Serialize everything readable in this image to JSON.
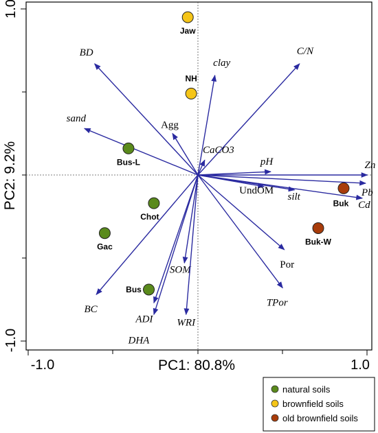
{
  "chart_data": {
    "type": "scatter",
    "title": "",
    "xlabel": "PC1: 80.8%",
    "ylabel": "PC2: 9.2%",
    "xlim": [
      -1.0,
      1.0
    ],
    "ylim": [
      -1.0,
      1.0
    ],
    "x_ticks": [
      "-1.0",
      "1.0"
    ],
    "y_ticks": [
      "1.0",
      "-1.0"
    ],
    "legend_position": "bottom-right",
    "groups": [
      {
        "name": "natural soils",
        "color": "#5a8a1c"
      },
      {
        "name": "brownfield soils",
        "color": "#f5c518"
      },
      {
        "name": "old brownfield soils",
        "color": "#a83c0a"
      }
    ],
    "sites": [
      {
        "label": "Jaw",
        "x": -0.06,
        "y": 0.95,
        "group": 1
      },
      {
        "label": "NH",
        "x": -0.04,
        "y": 0.49,
        "group": 1
      },
      {
        "label": "Bus-L",
        "x": -0.41,
        "y": 0.16,
        "group": 0
      },
      {
        "label": "Chot",
        "x": -0.26,
        "y": -0.17,
        "group": 0
      },
      {
        "label": "Gac",
        "x": -0.55,
        "y": -0.35,
        "group": 0
      },
      {
        "label": "Bus",
        "x": -0.29,
        "y": -0.69,
        "group": 0
      },
      {
        "label": "Buk",
        "x": 0.86,
        "y": -0.08,
        "group": 2
      },
      {
        "label": "Buk-W",
        "x": 0.71,
        "y": -0.32,
        "group": 2
      }
    ],
    "loadings": [
      {
        "label": "BD",
        "x": -0.61,
        "y": 0.67,
        "italic": true
      },
      {
        "label": "clay",
        "x": 0.1,
        "y": 0.6,
        "italic": true
      },
      {
        "label": "C/N",
        "x": 0.6,
        "y": 0.67,
        "italic": true
      },
      {
        "label": "sand",
        "x": -0.67,
        "y": 0.28,
        "italic": true
      },
      {
        "label": "Agg",
        "x": -0.15,
        "y": 0.25,
        "italic": false
      },
      {
        "label": "CaCO3",
        "x": 0.04,
        "y": 0.09,
        "italic": true
      },
      {
        "label": "pH",
        "x": 0.43,
        "y": 0.02,
        "italic": true
      },
      {
        "label": "Zn",
        "x": 1.0,
        "y": 0.0,
        "italic": true
      },
      {
        "label": "Pb",
        "x": 0.99,
        "y": -0.05,
        "italic": true
      },
      {
        "label": "Cd",
        "x": 0.97,
        "y": -0.14,
        "italic": true
      },
      {
        "label": "UndOM",
        "x": 0.39,
        "y": -0.07,
        "italic": false
      },
      {
        "label": "silt",
        "x": 0.57,
        "y": -0.09,
        "italic": true
      },
      {
        "label": "Por",
        "x": 0.51,
        "y": -0.45,
        "italic": false
      },
      {
        "label": "TPor",
        "x": 0.5,
        "y": -0.68,
        "italic": true
      },
      {
        "label": "SOM",
        "x": -0.08,
        "y": -0.53,
        "italic": true
      },
      {
        "label": "BC",
        "x": -0.6,
        "y": -0.72,
        "italic": true
      },
      {
        "label": "ADI",
        "x": -0.26,
        "y": -0.77,
        "italic": true
      },
      {
        "label": "DHA",
        "x": -0.26,
        "y": -0.84,
        "italic": true
      },
      {
        "label": "WRI",
        "x": -0.07,
        "y": -0.84,
        "italic": true
      }
    ]
  }
}
